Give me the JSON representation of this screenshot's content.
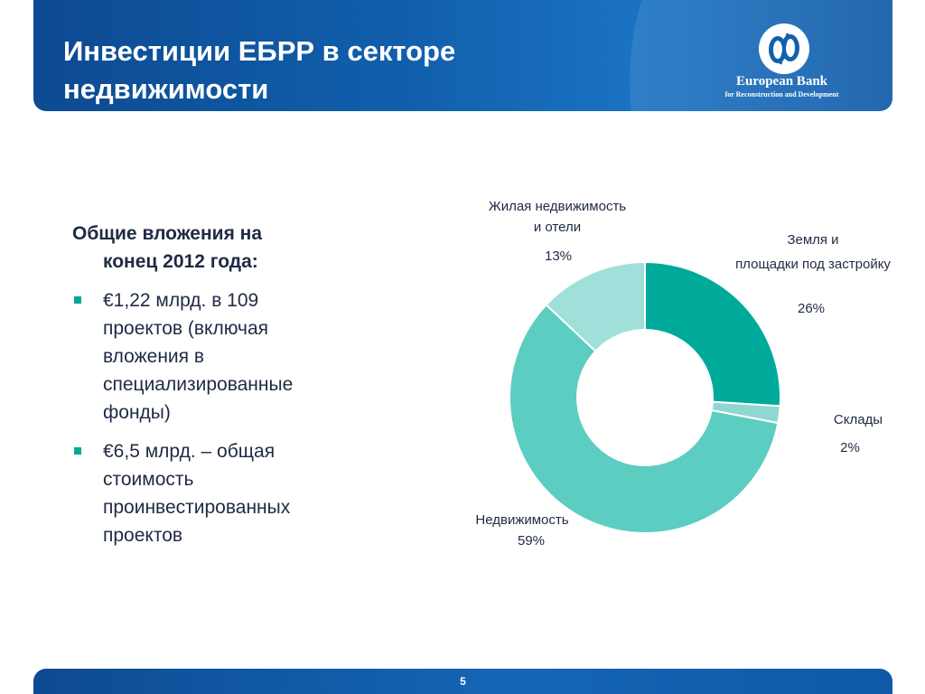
{
  "header": {
    "title_line1": "Инвестиции ЕБРР в секторе",
    "title_line2": "недвижимости",
    "logo_name": "European Bank",
    "logo_subtitle": "for Reconstruction and Development",
    "background_color": "#1160ad"
  },
  "summary": {
    "heading_line1": "Общие вложения на",
    "heading_line2": "конец 2012 года:",
    "bullets": [
      {
        "line1": "€1,22 млрд. в 109",
        "line2": "проектов (включая",
        "line3": "вложения в",
        "line4": "специализированные",
        "line5": "фонды)"
      },
      {
        "line1": "€6,5 млрд. – общая",
        "line2": "стоимость",
        "line3": "проинвестированных",
        "line4": "проектов"
      }
    ],
    "bullet_color": "#00a89c"
  },
  "chart_data": {
    "type": "pie",
    "variant": "donut",
    "start": "top, clockwise",
    "slices": [
      {
        "label_line1": "Земля и",
        "label_line2": "площадки под застройку",
        "value": 26,
        "value_label": "26%",
        "color": "#00aa9b"
      },
      {
        "label_line1": "Склады",
        "label_line2": "",
        "value": 2,
        "value_label": "2%",
        "color": "#8fd8d0"
      },
      {
        "label_line1": "Недвижимость",
        "label_line2": "",
        "value": 59,
        "value_label": "59%",
        "color": "#5ccdc1"
      },
      {
        "label_line1": "Жилая недвижимость",
        "label_line2": "и отели",
        "value": 13,
        "value_label": "13%",
        "color": "#9fe0da"
      }
    ]
  },
  "footer": {
    "page_number": "5"
  }
}
